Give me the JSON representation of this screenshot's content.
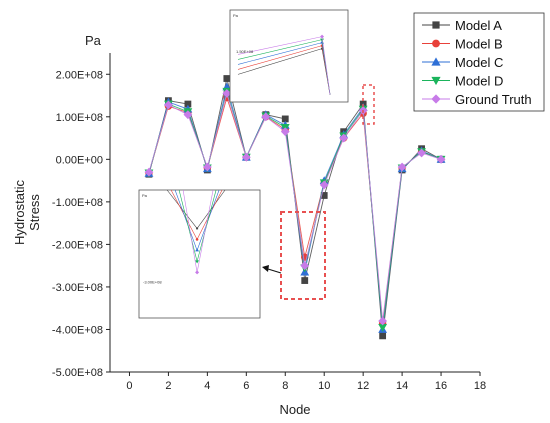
{
  "chart_data": {
    "type": "line",
    "title": "",
    "xlabel": "Node",
    "ylabel": "Hydrostatic Stress",
    "yunit": "Pa",
    "xlim": [
      -1,
      18
    ],
    "ylim": [
      -500000000,
      250000000
    ],
    "xticks": [
      0,
      2,
      4,
      6,
      8,
      10,
      12,
      14,
      16,
      18
    ],
    "yticks": [
      -500000000,
      -400000000,
      -300000000,
      -200000000,
      -100000000,
      0,
      100000000,
      200000000
    ],
    "ytick_labels": [
      "-5.00E+08",
      "-4.00E+08",
      "-3.00E+08",
      "-2.00E+08",
      "-1.00E+08",
      "0.00E+00",
      "1.00E+08",
      "2.00E+08"
    ],
    "legend_position": "top-right",
    "x": [
      1,
      2,
      3,
      4,
      5,
      6,
      7,
      8,
      9,
      10,
      11,
      12,
      13,
      14,
      15,
      16
    ],
    "series": [
      {
        "name": "Model A",
        "marker": "square",
        "color": "#444444",
        "values": [
          -35000000,
          138000000,
          130000000,
          -25000000,
          190000000,
          5000000,
          105000000,
          95000000,
          -285000000,
          -85000000,
          65000000,
          130000000,
          -415000000,
          -25000000,
          25000000,
          0
        ]
      },
      {
        "name": "Model B",
        "marker": "circle",
        "color": "#e8413a",
        "values": [
          -32000000,
          125000000,
          110000000,
          -20000000,
          145000000,
          5000000,
          100000000,
          70000000,
          -230000000,
          -55000000,
          50000000,
          108000000,
          -385000000,
          -20000000,
          18000000,
          0
        ]
      },
      {
        "name": "Model C",
        "marker": "triangle-up",
        "color": "#2e6fd6",
        "values": [
          -33000000,
          135000000,
          118000000,
          -22000000,
          170000000,
          5000000,
          105000000,
          80000000,
          -265000000,
          -50000000,
          58000000,
          122000000,
          -400000000,
          -22000000,
          20000000,
          0
        ]
      },
      {
        "name": "Model D",
        "marker": "triangle-down",
        "color": "#1bb45c",
        "values": [
          -32000000,
          130000000,
          112000000,
          -20000000,
          160000000,
          5000000,
          102000000,
          75000000,
          -255000000,
          -55000000,
          55000000,
          118000000,
          -395000000,
          -20000000,
          18000000,
          0
        ]
      },
      {
        "name": "Ground Truth",
        "marker": "diamond",
        "color": "#c77be8",
        "values": [
          -30000000,
          128000000,
          105000000,
          -18000000,
          155000000,
          5000000,
          100000000,
          65000000,
          -250000000,
          -60000000,
          50000000,
          115000000,
          -380000000,
          -18000000,
          15000000,
          0
        ]
      }
    ],
    "insets": [
      {
        "name": "inset-node-12",
        "unit": "Pa",
        "label": "1.50E+08"
      },
      {
        "name": "inset-node-9",
        "unit": "Pa",
        "label": "-3.00E+08"
      }
    ]
  }
}
